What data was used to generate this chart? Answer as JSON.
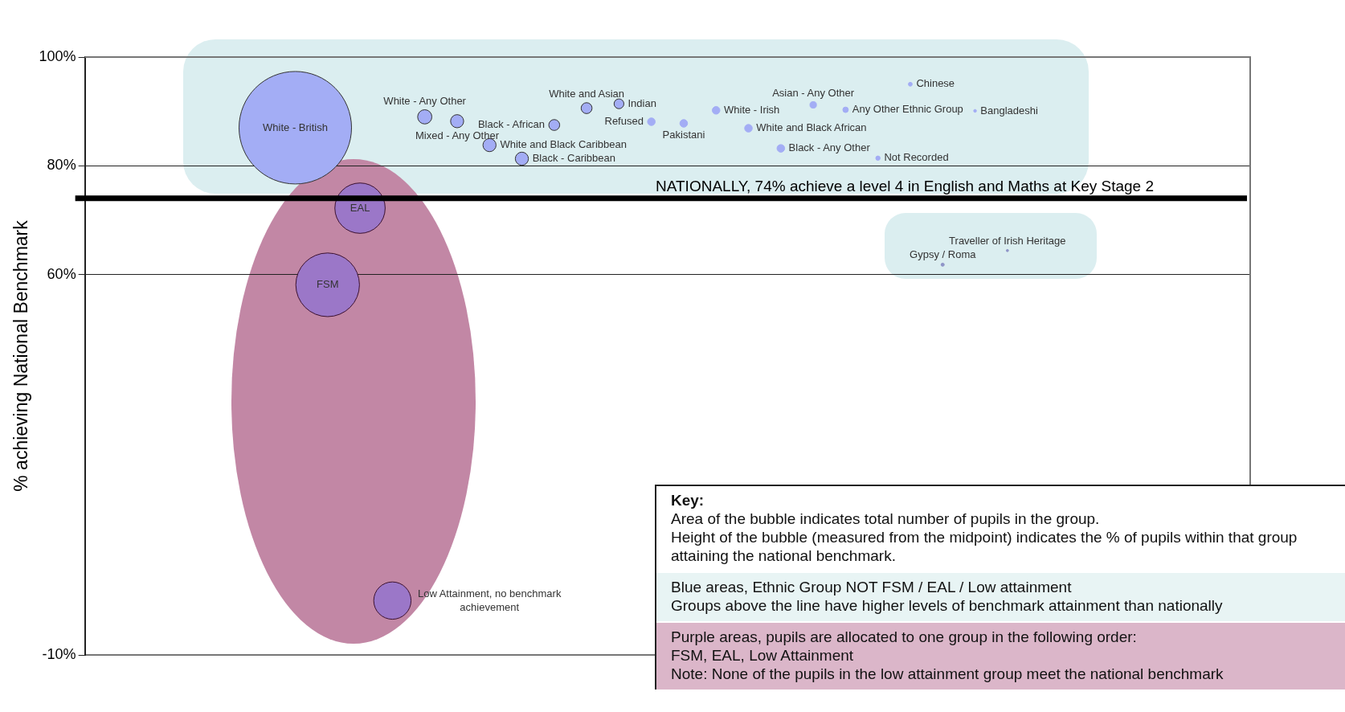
{
  "chart_data": {
    "type": "bubble",
    "ylabel": "% achieving National Benchmark",
    "categories": [
      null,
      null,
      null,
      null,
      null,
      null,
      null,
      null,
      null,
      null,
      null,
      null,
      null,
      null,
      null,
      null,
      null,
      null,
      null,
      null,
      null,
      null,
      null,
      null,
      null,
      null,
      null,
      null,
      null,
      null,
      null,
      null,
      null,
      null,
      null,
      null
    ],
    "ylim": [
      -10,
      100
    ],
    "yticks": [
      {
        "value": -10,
        "label": "-10%"
      },
      {
        "value": 60,
        "label": "60%"
      },
      {
        "value": 80,
        "label": "80%"
      },
      {
        "value": 100,
        "label": "100%"
      }
    ],
    "tick_labels": "y",
    "grid": "y",
    "legend": false,
    "series": [
      {
        "color": "#a3adf5",
        "values": [
          null,
          null,
          null,
          null,
          null,
          null,
          87.0,
          null,
          null,
          null,
          89.0,
          88.2,
          83.8,
          81.3,
          87.5,
          90.6,
          91.4,
          88.1,
          87.8,
          90.2,
          86.9,
          83.2,
          91.2,
          90.3,
          81.4,
          95.0,
          null,
          90.1,
          null,
          null,
          null,
          null,
          null,
          null,
          null,
          null
        ],
        "sizes": [
          null,
          null,
          null,
          null,
          null,
          null,
          1,
          null,
          null,
          null,
          0.016,
          0.0136,
          0.0136,
          0.0136,
          0.0094,
          0.0094,
          0.0076,
          0.0046,
          0.0046,
          0.0046,
          0.0046,
          0.0046,
          0.0034,
          0.0024,
          0.0015,
          0.0012,
          null,
          0.0006,
          null,
          null,
          null,
          null,
          null,
          null,
          null,
          null
        ]
      },
      {
        "color": "#8f95c8",
        "values": [
          null,
          null,
          null,
          null,
          null,
          null,
          null,
          null,
          null,
          null,
          null,
          null,
          null,
          null,
          null,
          null,
          null,
          null,
          null,
          null,
          null,
          null,
          null,
          null,
          null,
          null,
          61.8,
          null,
          64.4,
          null,
          null,
          null,
          null,
          null,
          null,
          null
        ],
        "sizes": [
          null,
          null,
          null,
          null,
          null,
          null,
          null,
          null,
          null,
          null,
          null,
          null,
          null,
          null,
          null,
          null,
          null,
          null,
          null,
          null,
          null,
          null,
          null,
          null,
          null,
          null,
          0.0008,
          null,
          0.0004,
          null,
          null,
          null,
          null,
          null,
          null,
          null
        ]
      },
      {
        "color": "#9b77c8",
        "values": [
          null,
          null,
          null,
          null,
          null,
          null,
          null,
          58.1,
          72.2,
          0,
          null,
          null,
          null,
          null,
          null,
          null,
          null,
          null,
          null,
          null,
          null,
          null,
          null,
          null,
          null,
          null,
          null,
          null,
          null,
          null,
          null,
          null,
          null,
          null,
          null,
          null
        ],
        "sizes": [
          null,
          null,
          null,
          null,
          null,
          null,
          null,
          0.32,
          0.2,
          0.11,
          null,
          null,
          null,
          null,
          null,
          null,
          null,
          null,
          null,
          null,
          null,
          null,
          null,
          null,
          null,
          null,
          null,
          null,
          null,
          null,
          null,
          null,
          null,
          null,
          null,
          null
        ]
      }
    ],
    "ref_lines": [
      {
        "axis": "y",
        "value": 74,
        "label": "NATIONALLY, 74% achieve a level 4 in English and Maths at Key Stage 2",
        "color": "#000000"
      }
    ],
    "annotations": [
      "White - British",
      "FSM",
      "EAL",
      "Low Attainment, no benchmark achievement",
      "White - Any Other",
      "Mixed - Any Other",
      "White and Black Caribbean",
      "Black - Caribbean",
      "Black - African",
      "White and Asian",
      "Indian",
      "Refused",
      "Pakistani",
      "White - Irish",
      "White and Black African",
      "Black - Any Other",
      "Asian - Any Other",
      "Any Other Ethnic Group",
      "Not Recorded",
      "Chinese",
      "Gypsy / Roma",
      "Bangladeshi",
      "Traveller of Irish Heritage",
      "Key:",
      "Area of the bubble indicates total number of pupils in the group.",
      "Height of the bubble (measured from the midpoint) indicates the % of pupils within that group attaining the national benchmark.",
      "Blue areas, Ethnic Group NOT FSM / EAL / Low attainment",
      "Groups above the line have higher levels of benchmark attainment than nationally",
      "Purple areas, pupils are allocated to one group in the following order:",
      "FSM, EAL, Low Attainment",
      "Note: None of the pupils in the low attainment group meet the national benchmark"
    ]
  }
}
